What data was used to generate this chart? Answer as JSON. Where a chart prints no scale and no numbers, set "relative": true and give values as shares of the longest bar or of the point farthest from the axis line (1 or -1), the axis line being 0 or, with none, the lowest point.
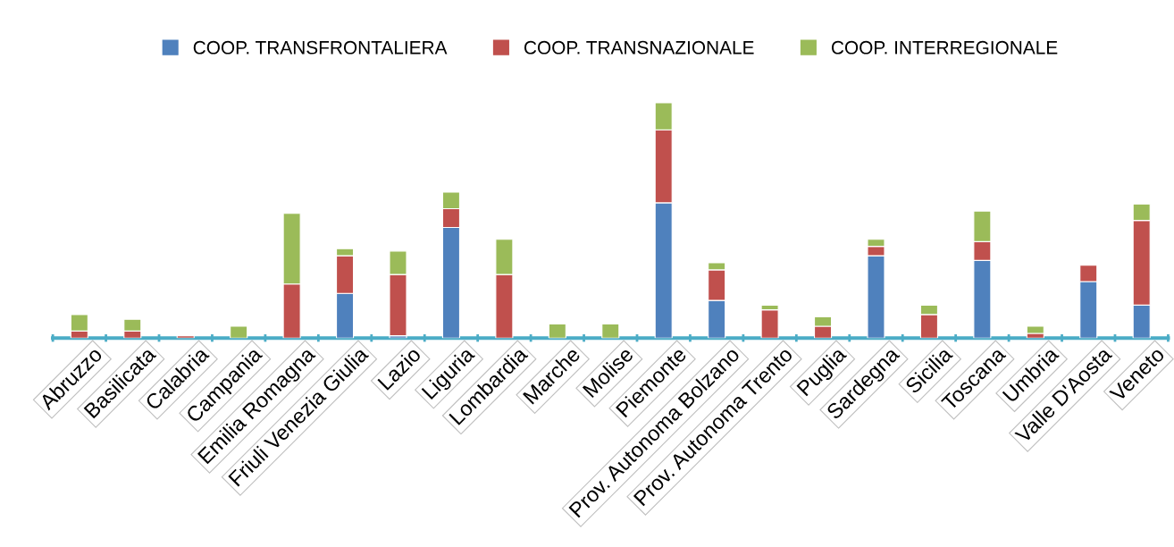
{
  "chart_data": {
    "type": "bar",
    "stacked": true,
    "relative": true,
    "legend": "top",
    "grid": false,
    "categories": [
      "Abruzzo",
      "Basilicata",
      "Calabria",
      "Campania",
      "Emilia Romagna",
      "Friuli Venezia Giulia",
      "Lazio",
      "Liguria",
      "Lombardia",
      "Marche",
      "Molise",
      "Piemonte",
      "Prov. Autonoma Bolzano",
      "Prov. Autonoma Trento",
      "Puglia",
      "Sardegna",
      "Sicilia",
      "Toscana",
      "Umbria",
      "Valle D'Aosta",
      "Veneto"
    ],
    "series": [
      {
        "name": "COOP. TRANSFRONTALIERA",
        "color": "#4f81bd",
        "values": [
          null,
          null,
          null,
          null,
          null,
          0.19,
          0.01,
          0.47,
          null,
          null,
          null,
          0.575,
          0.16,
          null,
          null,
          0.35,
          null,
          0.33,
          null,
          0.24,
          0.14
        ]
      },
      {
        "name": "COOP. TRANSNAZIONALE",
        "color": "#c0504d",
        "values": [
          0.03,
          0.03,
          0.01,
          null,
          0.23,
          0.16,
          0.26,
          0.08,
          0.27,
          0,
          0,
          0.31,
          0.13,
          0.12,
          0.05,
          0.04,
          0.1,
          0.08,
          0.02,
          0.07,
          0.36
        ]
      },
      {
        "name": "COOP. INTERREGIONALE",
        "color": "#9bbb59",
        "values": [
          0.07,
          0.05,
          null,
          0.05,
          0.3,
          0.03,
          0.1,
          0.07,
          0.15,
          0.06,
          0.06,
          0.115,
          0.03,
          0.02,
          0.04,
          0.03,
          0.04,
          0.13,
          0.03,
          null,
          0.07
        ]
      }
    ]
  }
}
